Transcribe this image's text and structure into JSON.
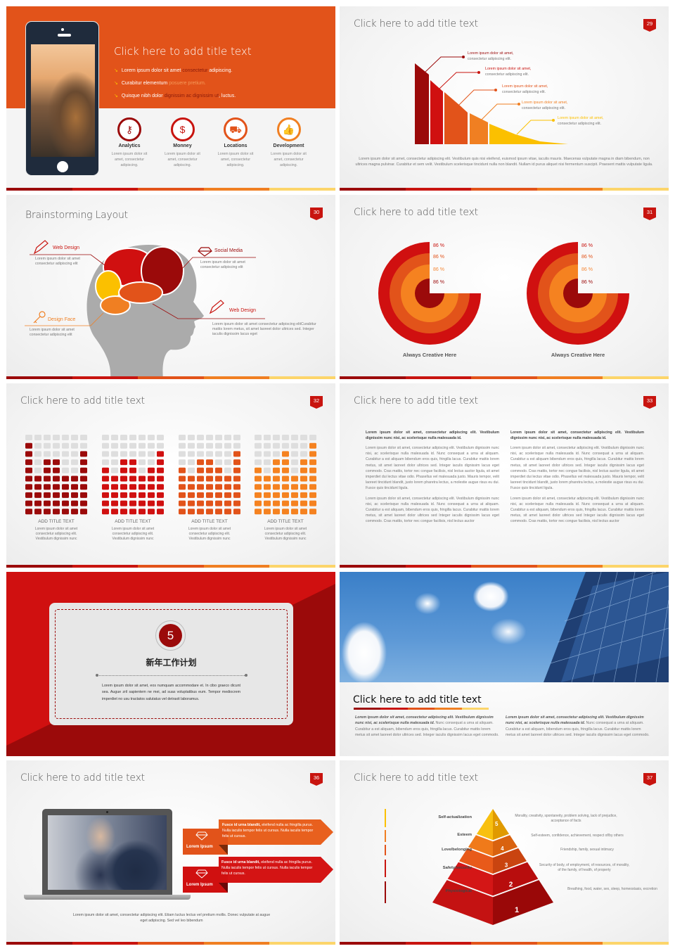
{
  "palette": {
    "dark_red": "#9b0a0a",
    "red": "#d01010",
    "orange_red": "#e2531a",
    "orange": "#f07f22",
    "yellow": "#fbc000",
    "accent_bar": [
      "#9b0a0a",
      "#c8140f",
      "#e2531a",
      "#f07f22",
      "#fcd56a"
    ]
  },
  "s28": {
    "title": "Click here to add title text",
    "bullets": [
      {
        "a": "Lorem ipsum dolor sit amet ",
        "b": "consectetur",
        "c": " adipiscing."
      },
      {
        "a": "Curabitur elementum ",
        "b": "posuere pretium.",
        "c": ""
      },
      {
        "a": "Quisque nibh dolor ",
        "b": "dignissim ac dignissim ut",
        "c": ", luctus."
      }
    ],
    "features": [
      {
        "icon": "key-icon",
        "label": "Analytics",
        "desc": "Lorem ipsum dolor sit amet, consectetur adipiscing.",
        "color": "#9b0a0a"
      },
      {
        "icon": "money-icon",
        "label": "Monney",
        "desc": "Lorem ipsum dolor sit amet, consectetur adipiscing.",
        "color": "#c8140f"
      },
      {
        "icon": "truck-icon",
        "label": "Locations",
        "desc": "Lorem ipsum dolor sit amet, consectetur adipiscing.",
        "color": "#e2531a"
      },
      {
        "icon": "thumbs-up-icon",
        "label": "Development",
        "desc": "Lorem ipsum dolor sit amet, consectetur adipiscing.",
        "color": "#f07f22"
      }
    ]
  },
  "s29": {
    "title": "Click here to add title text",
    "badge": "29",
    "callouts": [
      {
        "head": "Lorem ipsum dolor sit amet,",
        "sub": "consectetur adipiscing elit.",
        "color": "#9b0a0a"
      },
      {
        "head": "Lorem ipsum dolor sit amet,",
        "sub": "consectetur adipiscing elit.",
        "color": "#c8140f"
      },
      {
        "head": "Lorem ipsum dolor sit amet,",
        "sub": "consectetur adipiscing elit.",
        "color": "#e2531a"
      },
      {
        "head": "Lorem ipsum dolor sit amet,",
        "sub": "consectetur adipiscing elit.",
        "color": "#f07f22"
      },
      {
        "head": "Lorem ipsum dolor sit amet,",
        "sub": "consectetur adipiscing elit.",
        "color": "#fbc000"
      }
    ],
    "body": "Lorem ipsum dolor sit amet, consectetur adipiscing elit. Vestibulum quis nisi eleifend, euismod ipsum vitae, iaculis mauris. Maecenas vulputate magna in diam bibendum, non ultrices magna pulvinar. Curabitur et sem velit. Vestibulum scelerisque tincidunt nulla non blandit. Nullam id purus aliquet nisi fermentum suscipit. Praesent mattis vulputate ligula."
  },
  "s30": {
    "title": "Brainstorming Layout",
    "badge": "30",
    "items": [
      {
        "label": "Web Design",
        "desc": "Lorem ipsum dolor sit amet consectetur adipiscing elit"
      },
      {
        "label": "Social Media",
        "desc": "Lorem ipsum dolor sit amet consectetur adipiscing elit"
      },
      {
        "label": "Design Face",
        "desc": "Lorem ipsum dolor sit amet consectetur adipiscing elit"
      },
      {
        "label": "Web Design",
        "desc": "Lorem ipsum dolor sit amet consectetur adipiscing elitCurabitur mattis lorem metus, sit amet laoreet dolor ultrices sed. Integer iaculis dignissim lacus eget"
      }
    ]
  },
  "s31": {
    "title": "Click here to add title text",
    "badge": "31",
    "charts": [
      {
        "labels": [
          "86 %",
          "86 %",
          "86 %",
          "86 %"
        ],
        "caption": "Always Creative Here"
      },
      {
        "labels": [
          "86 %",
          "86 %",
          "86 %",
          "86 %"
        ],
        "caption": "Always Creative Here"
      }
    ]
  },
  "s32": {
    "title": "Click here to add title text",
    "badge": "32",
    "grids": [
      {
        "columns_filled": [
          9,
          5,
          7,
          7,
          5,
          5,
          8
        ],
        "color": "#9b0a0a",
        "label": "ADD TITLE TEXT",
        "desc": "Lorem ipsum dolor sit amet consectetur adipiscing elit. Vestibulum dignissim nunc"
      },
      {
        "columns_filled": [
          6,
          5,
          7,
          7,
          5,
          6,
          8
        ],
        "color": "#d01010",
        "label": "ADD TITLE TEXT",
        "desc": "Lorem ipsum dolor sit amet consectetur adipiscing elit. Vestibulum dignissim nunc"
      },
      {
        "columns_filled": [
          6,
          5,
          7,
          7,
          6,
          5,
          8
        ],
        "color": "#e2531a",
        "label": "ADD TITLE TEXT",
        "desc": "Lorem ipsum dolor sit amet consectetur adipiscing elit. Vestibulum dignissim nunc"
      },
      {
        "columns_filled": [
          6,
          5,
          7,
          8,
          5,
          7,
          9
        ],
        "color": "#f58220",
        "label": "ADD TITLE TEXT",
        "desc": "Lorem ipsum dolor sit amet consectetur adipiscing elit. Vestibulum dignissim nunc"
      }
    ],
    "rows": 10
  },
  "s33": {
    "title": "Click here to add title text",
    "badge": "33",
    "columns": [
      {
        "lead": "Lorem ipsum dolor sit amet, consectetur adipiscing elit. Vestibulum dignissim nunc nisi, ac scelerisque nulla malesuada id.",
        "p1": "Lorem ipsum dolor sit amet, consectetur adipiscing elit. Vestibulum dignissim nunc nisi, ac scelerisque nulla malesuada id. Nunc consequat a urna at aliquam. Curabitur a est aliquam bibendum eros quis, fringilla lacus. Curabitur mattis lorem metus, sit amet laoreet dolor ultrices sed. Integer iaculis dignissim lacus eget commodo. Cras mattis, tortor nec congue facilisis, nisl lectus auctor ligula, sit amet imperdiet dui lectus vitae odio. Phasellus vel malesuada justo. Mauris tempor, velit laoreet tincidunt blandit, justo lorem pharetra lectus, a molestie augue risus eu dui. Fusce quis tincidunt ligula.",
        "p2": "Lorem ipsum dolor sit amet, consectetur adipiscing elit. Vestibulum dignissim nunc nisi, ac scelerisque nulla malesuada id. Nunc consequat a urna at aliquam. Curabitur a est aliquam, bibendum eros quis, fringilla lacus. Curabitur mattis lorem metus, sit amet laoreet dolor ultrices sed Integer iaculis dignissim lacus eget commodo. Cras mattis, tortor nec congue facilisis, nisl lectus auctor"
      },
      {
        "lead": "Lorem ipsum dolor sit amet, consectetur adipiscing elit. Vestibulum dignissim nunc nisi, ac scelerisque nulla malesuada id.",
        "p1": "Lorem ipsum dolor sit amet, consectetur adipiscing elit. Vestibulum dignissim nunc nisi, ac scelerisque nulla malesuada id. Nunc consequat a urna at aliquam. Curabitur a est aliquam bibendum eros quis, fringilla lacus. Curabitur mattis lorem metus, sit amet laoreet dolor ultrices sed. Integer iaculis dignissim lacus eget commodo. Cras mattis, tortor nec congue facilisis, nisl lectus auctor ligula, sit amet imperdiet dui lectus vitae odio. Phasellus vel malesuada justo. Mauris tempor, velit laoreet tincidunt blandit, justo lorem pharetra lectus, a molestie augue risus eu dui. Fusce quis tincidunt ligula.",
        "p2": "Lorem ipsum dolor sit amet, consectetur adipiscing elit. Vestibulum dignissim nunc nisi, ac scelerisque nulla malesuada id. Nunc consequat a urna at aliquam. Curabitur a est aliquam, bibendum eros quis, fringilla lacus. Curabitur mattis lorem metus, sit amet laoreet dolor ultrices sed Integer iaculis dignissim lacus eget commodo. Cras mattis, tortor nec congue facilisis, nisl lectus auctor"
      }
    ]
  },
  "s34": {
    "number": "5",
    "heading": "新年工作计划",
    "body": "Lorem ipsum dolor sit amet, eos numquam accommodare et. In cibo graeco dicunt sea. Augue zril sapientem ne mei, ad suas voluptatibus eum. Tempor mediocrem imperdiet no usu tractatos salutatus vel detraxit laboramus."
  },
  "s35": {
    "title": "Click here to add title text",
    "columns": [
      {
        "lead": "Lorem ipsum dolor sit amet, consectetur adipiscing elit. Vestibulum dignissim nunc nisi, ac scelerisque nulla malesuada id.",
        "rest": " Nunc consequat a urna at aliquam. Curabitur a est aliquam, bibendum eros quis, fringilla lacus. Curabitur mattis lorem metus sit amet laoreet dolor ultrices sed. Integer iaculis dignissim lacus eget commodo."
      },
      {
        "lead": "Lorem ipsum dolor sit amet, consectetur adipiscing elit. Vestibulum dignissim nunc nisi, ac scelerisque nulla malesuada id.",
        "rest": " Nunc consequat a urna at aliquam. Curabitur a est aliquam, bibendum eros quis, fringilla lacus. Curabitur mattis lorem metus sit amet laoreet dolor ultrices sed. Integer iaculis dignissim lacus eget commodo."
      }
    ]
  },
  "s36": {
    "title": "Click here to add title text",
    "badge": "36",
    "banners": [
      {
        "label": "Lorem Ipsum",
        "lead": "Fusce id urna blandit,",
        "rest": " eleifend nulla ac fringilla purus. Nulla iaculis tempor felis ut cursus. Nulla iaculis tempor felis ut cursus."
      },
      {
        "label": "Lorem Ipsum",
        "lead": "Fusce id urna blandit,",
        "rest": " eleifend nulla ac fringilla purus. Nulla iaculis tempor felis ut cursus. Nulla iaculis tempor felis ut cursus."
      }
    ],
    "body": "Lorem ipsum dolor sit amet, consectetur adipiscing elit. Etiam luctus lectus vel pretium mollis. Donec vulputate at augue eget adipiscing. Sed vel leo bibendum"
  },
  "s37": {
    "title": "Click here to add title text",
    "badge": "37",
    "levels": [
      {
        "num": "1",
        "name": "Physiological",
        "desc": "Breathing, food, water, sex, sleep, homeostasis, excretion"
      },
      {
        "num": "2",
        "name": "Safety/security",
        "desc": "Security of body, of employment, of resources, of morality, of the family, of health, of property"
      },
      {
        "num": "3",
        "name": "Love/belonging",
        "desc": "Friendship, family, sexual intimacy"
      },
      {
        "num": "4",
        "name": "Esteem",
        "desc": "Self-esteem, confidence, achievement, respect of/by others"
      },
      {
        "num": "5",
        "name": "Self-actualization",
        "desc": "Morality, creativity, spontaneity, problem solving, lack of prejudice, acceptance of facts"
      }
    ]
  }
}
